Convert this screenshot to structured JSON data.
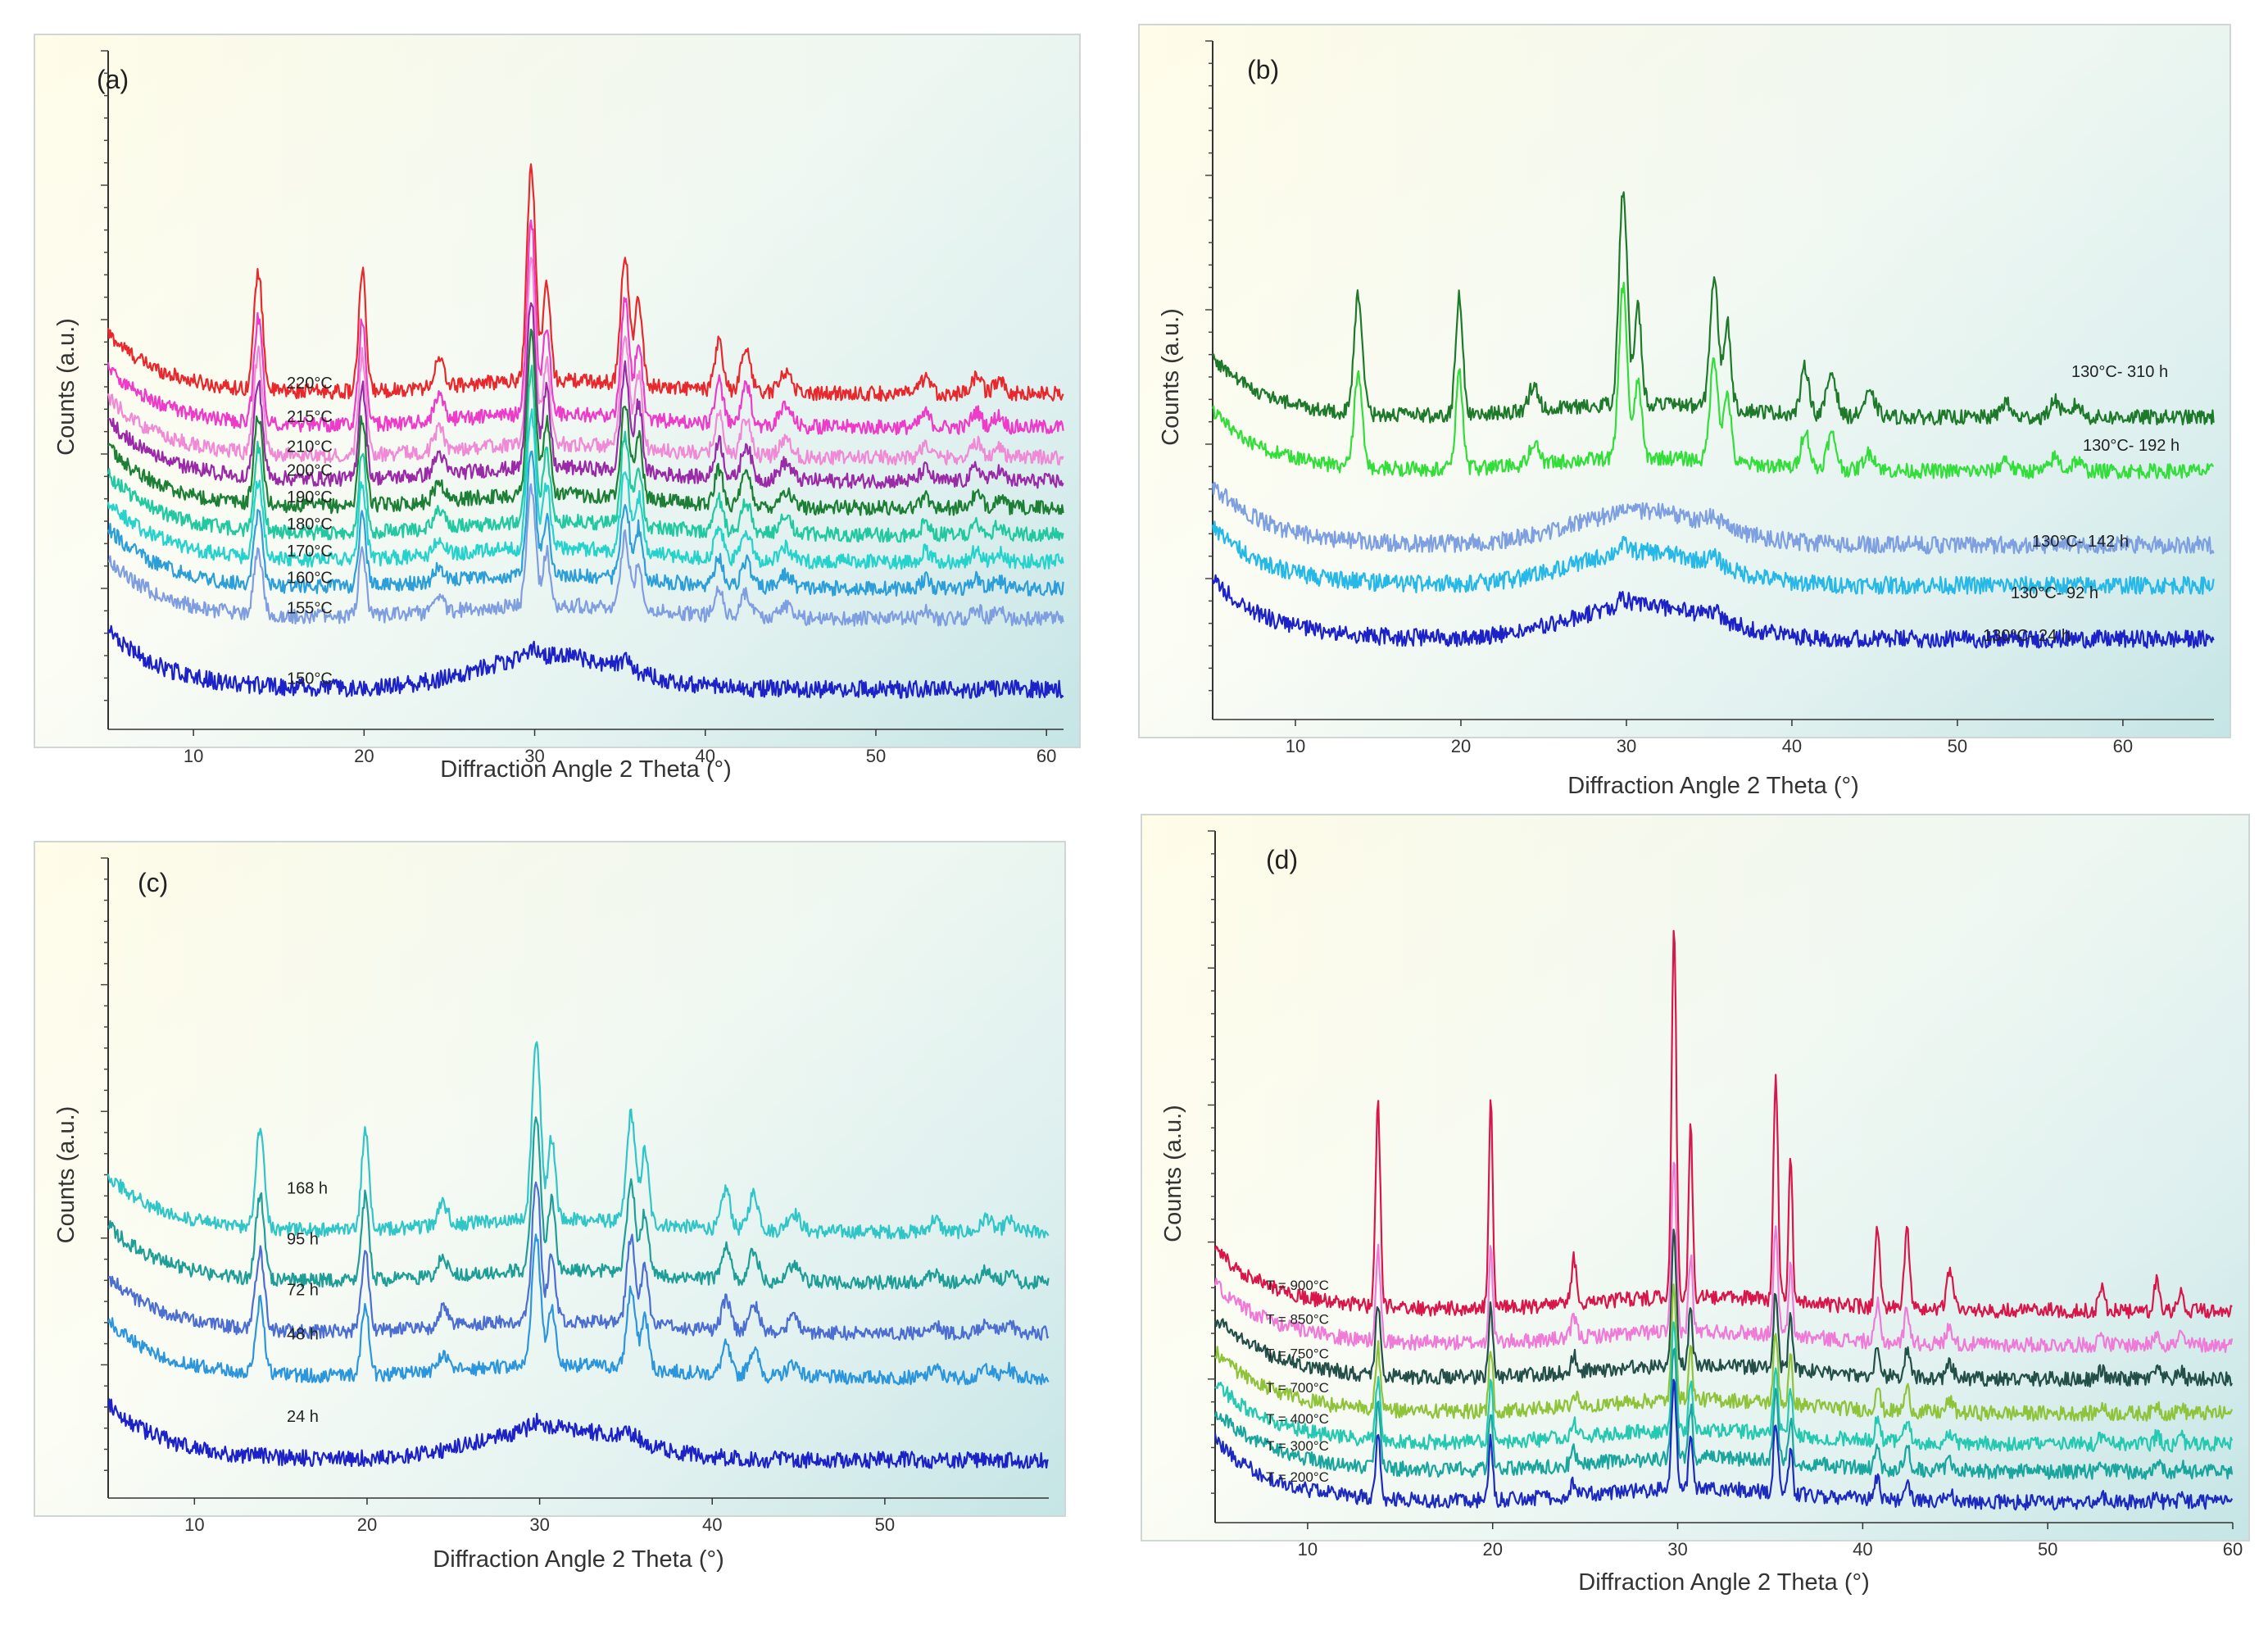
{
  "chart_data": [
    {
      "type": "line",
      "panel_label": "(a)",
      "xlabel": "Diffraction Angle 2 Theta (°)",
      "ylabel": "Counts (a.u.)",
      "xlim": [
        5,
        61
      ],
      "ylim": [
        0,
        100
      ],
      "xticks": [
        10,
        20,
        30,
        40,
        50,
        60
      ],
      "peaks_2theta": [
        13.8,
        19.9,
        24.4,
        29.8,
        30.7,
        35.3,
        36.1,
        40.8,
        42.4,
        44.7,
        52.9,
        55.9,
        57.2
      ],
      "series": [
        {
          "name": "220°C",
          "color": "#e8282c",
          "baseline": 49,
          "peak_scale": 1.0,
          "crystalline": true
        },
        {
          "name": "215°C",
          "color": "#ee3bc9",
          "baseline": 44,
          "peak_scale": 0.9,
          "crystalline": true
        },
        {
          "name": "210°C",
          "color": "#f08ad6",
          "baseline": 39.5,
          "peak_scale": 0.85,
          "crystalline": true
        },
        {
          "name": "200°C",
          "color": "#9a2aa8",
          "baseline": 36,
          "peak_scale": 0.8,
          "crystalline": true
        },
        {
          "name": "190°C",
          "color": "#1d7f35",
          "baseline": 32,
          "peak_scale": 0.75,
          "crystalline": true
        },
        {
          "name": "180°C",
          "color": "#22c9a0",
          "baseline": 28,
          "peak_scale": 0.7,
          "crystalline": true
        },
        {
          "name": "170°C",
          "color": "#26d2cc",
          "baseline": 24,
          "peak_scale": 0.65,
          "crystalline": true
        },
        {
          "name": "160°C",
          "color": "#2c9ed8",
          "baseline": 20,
          "peak_scale": 0.6,
          "crystalline": true
        },
        {
          "name": "155°C",
          "color": "#7f9ee0",
          "baseline": 15.5,
          "peak_scale": 0.55,
          "crystalline": true
        },
        {
          "name": "150°C",
          "color": "#1c22c8",
          "baseline": 5,
          "peak_scale": 0.15,
          "crystalline": false
        }
      ]
    },
    {
      "type": "line",
      "panel_label": "(b)",
      "xlabel": "Diffraction Angle 2 Theta (°)",
      "ylabel": "Counts (a.u.)",
      "xlim": [
        5,
        65.5
      ],
      "ylim": [
        0,
        100
      ],
      "xticks": [
        10,
        20,
        30,
        40,
        50,
        60
      ],
      "series": [
        {
          "name": "130°C- 310 h",
          "color": "#1e7a2a",
          "baseline": 44,
          "peak_scale": 1.0,
          "crystalline": true
        },
        {
          "name": "130°C- 192 h",
          "color": "#33dd3a",
          "baseline": 36,
          "peak_scale": 0.8,
          "crystalline": true
        },
        {
          "name": "130°C- 142 h",
          "color": "#7ea0e0",
          "baseline": 25,
          "peak_scale": 0.2,
          "crystalline": false
        },
        {
          "name": "130°C- 92 h",
          "color": "#26b8e6",
          "baseline": 19,
          "peak_scale": 0.2,
          "crystalline": false
        },
        {
          "name": "130°C- 24 h",
          "color": "#1c22c8",
          "baseline": 11,
          "peak_scale": 0.2,
          "crystalline": false
        }
      ]
    },
    {
      "type": "line",
      "panel_label": "(c)",
      "xlabel": "Diffraction Angle 2 Theta (°)",
      "ylabel": "Counts (a.u.)",
      "xlim": [
        5,
        59.5
      ],
      "ylim": [
        0,
        100
      ],
      "xticks": [
        10,
        20,
        30,
        40,
        50
      ],
      "series": [
        {
          "name": "168 h",
          "color": "#30c6c8",
          "baseline": 41,
          "peak_scale": 0.9,
          "crystalline": true
        },
        {
          "name": "95 h",
          "color": "#1f9e98",
          "baseline": 33,
          "peak_scale": 0.75,
          "crystalline": true
        },
        {
          "name": "72 h",
          "color": "#4b6ed0",
          "baseline": 25,
          "peak_scale": 0.7,
          "crystalline": true
        },
        {
          "name": "48 h",
          "color": "#2c96dc",
          "baseline": 18,
          "peak_scale": 0.65,
          "crystalline": true
        },
        {
          "name": "24 h",
          "color": "#1c22c8",
          "baseline": 5,
          "peak_scale": 0.15,
          "crystalline": false
        }
      ]
    },
    {
      "type": "line",
      "panel_label": "(d)",
      "xlabel": "Diffraction Angle 2 Theta (°)",
      "ylabel": "Counts (a.u.)",
      "xlim": [
        5,
        60
      ],
      "ylim": [
        0,
        100
      ],
      "xticks": [
        10,
        20,
        30,
        40,
        50,
        60
      ],
      "series": [
        {
          "name": "T = 900°C",
          "color": "#d8164a",
          "baseline": 30,
          "peak_scale": 1.0,
          "crystalline": true
        },
        {
          "name": "T = 850°C",
          "color": "#ef7ad8",
          "baseline": 25,
          "peak_scale": 0.45,
          "crystalline": true
        },
        {
          "name": "T = 750°C",
          "color": "#234f48",
          "baseline": 20,
          "peak_scale": 0.35,
          "crystalline": true
        },
        {
          "name": "T = 700°C",
          "color": "#8fc33a",
          "baseline": 15,
          "peak_scale": 0.3,
          "crystalline": true
        },
        {
          "name": "T = 400°C",
          "color": "#25c8b0",
          "baseline": 10.5,
          "peak_scale": 0.3,
          "crystalline": true
        },
        {
          "name": "T = 300°C",
          "color": "#1aa59e",
          "baseline": 6.5,
          "peak_scale": 0.3,
          "crystalline": true
        },
        {
          "name": "T = 200°C",
          "color": "#1c2ac0",
          "baseline": 2,
          "peak_scale": 0.3,
          "crystalline": true
        }
      ]
    }
  ]
}
